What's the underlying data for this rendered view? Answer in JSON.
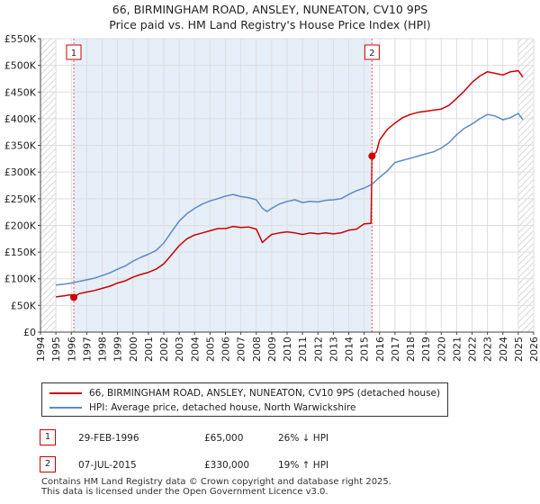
{
  "title": "66, BIRMINGHAM ROAD, ANSLEY, NUNEATON, CV10 9PS",
  "subtitle": "Price paid vs. HM Land Registry's House Price Index (HPI)",
  "colors": {
    "property": "#cc0000",
    "hpi": "#5b8ac8",
    "shade": "#e6eef8",
    "hatch": "#cccccc",
    "marker_line": "#e06060",
    "grid": "#dddddd"
  },
  "legend": {
    "property_label": "66, BIRMINGHAM ROAD, ANSLEY, NUNEATON, CV10 9PS (detached house)",
    "hpi_label": "HPI: Average price, detached house, North Warwickshire"
  },
  "transactions": [
    {
      "num": "1",
      "date": "29-FEB-1996",
      "price": "£65,000",
      "hpi_rel": "26% ↓ HPI"
    },
    {
      "num": "2",
      "date": "07-JUL-2015",
      "price": "£330,000",
      "hpi_rel": "19% ↑ HPI"
    }
  ],
  "footer": {
    "line1": "Contains HM Land Registry data © Crown copyright and database right 2025.",
    "line2": "This data is licensed under the Open Government Licence v3.0."
  },
  "chart_data": {
    "type": "line",
    "title": "66, BIRMINGHAM ROAD, ANSLEY, NUNEATON, CV10 9PS",
    "subtitle": "Price paid vs. HM Land Registry's House Price Index (HPI)",
    "xlim": [
      1994,
      2026
    ],
    "ylim": [
      0,
      550000
    ],
    "x_ticks": [
      1994,
      1995,
      1996,
      1997,
      1998,
      1999,
      2000,
      2001,
      2002,
      2003,
      2004,
      2005,
      2006,
      2007,
      2008,
      2009,
      2010,
      2011,
      2012,
      2013,
      2014,
      2015,
      2016,
      2017,
      2018,
      2019,
      2020,
      2021,
      2022,
      2023,
      2024,
      2025,
      2026
    ],
    "y_ticks": [
      0,
      50000,
      100000,
      150000,
      200000,
      250000,
      300000,
      350000,
      400000,
      450000,
      500000,
      550000
    ],
    "y_tick_labels": [
      "£0",
      "£50K",
      "£100K",
      "£150K",
      "£200K",
      "£250K",
      "£300K",
      "£350K",
      "£400K",
      "£450K",
      "£500K",
      "£550K"
    ],
    "shaded_range": [
      1996.16,
      2015.51
    ],
    "hatched_ranges": [
      [
        1994,
        1995.0
      ],
      [
        2025.0,
        2026
      ]
    ],
    "sale_markers": [
      {
        "label": "1",
        "x": 1996.16,
        "y": 65000
      },
      {
        "label": "2",
        "x": 2015.51,
        "y": 330000
      }
    ],
    "series": [
      {
        "name": "66, BIRMINGHAM ROAD, ANSLEY, NUNEATON, CV10 9PS (detached house)",
        "color": "#cc0000",
        "x": [
          1995.0,
          1995.5,
          1996.0,
          1996.16,
          1996.5,
          1997.0,
          1997.5,
          1998.0,
          1998.5,
          1999.0,
          1999.5,
          2000.0,
          2000.5,
          2001.0,
          2001.5,
          2002.0,
          2002.5,
          2003.0,
          2003.5,
          2004.0,
          2004.5,
          2005.0,
          2005.5,
          2006.0,
          2006.5,
          2007.0,
          2007.5,
          2008.0,
          2008.4,
          2008.7,
          2009.0,
          2009.5,
          2010.0,
          2010.5,
          2011.0,
          2011.5,
          2012.0,
          2012.5,
          2013.0,
          2013.5,
          2014.0,
          2014.5,
          2015.0,
          2015.45,
          2015.51,
          2015.8,
          2016.0,
          2016.5,
          2017.0,
          2017.5,
          2018.0,
          2018.5,
          2019.0,
          2019.5,
          2020.0,
          2020.5,
          2021.0,
          2021.5,
          2022.0,
          2022.5,
          2023.0,
          2023.5,
          2024.0,
          2024.5,
          2025.0,
          2025.3
        ],
        "y": [
          66000,
          68000,
          70000,
          65000,
          72000,
          75000,
          78000,
          82000,
          86000,
          92000,
          96000,
          103000,
          108000,
          112000,
          118000,
          128000,
          145000,
          162000,
          175000,
          182000,
          186000,
          190000,
          194000,
          194000,
          198000,
          196000,
          197000,
          193000,
          168000,
          176000,
          183000,
          186000,
          188000,
          186000,
          183000,
          186000,
          184000,
          186000,
          184000,
          186000,
          191000,
          193000,
          203000,
          204000,
          330000,
          338000,
          360000,
          380000,
          392000,
          402000,
          408000,
          412000,
          414000,
          416000,
          418000,
          425000,
          438000,
          452000,
          468000,
          480000,
          488000,
          485000,
          482000,
          488000,
          490000,
          478000
        ]
      },
      {
        "name": "HPI: Average price, detached house, North Warwickshire",
        "color": "#5b8ac8",
        "x": [
          1995.0,
          1995.5,
          1996.0,
          1996.5,
          1997.0,
          1997.5,
          1998.0,
          1998.5,
          1999.0,
          1999.5,
          2000.0,
          2000.5,
          2001.0,
          2001.5,
          2002.0,
          2002.5,
          2003.0,
          2003.5,
          2004.0,
          2004.5,
          2005.0,
          2005.5,
          2006.0,
          2006.5,
          2007.0,
          2007.5,
          2008.0,
          2008.4,
          2008.7,
          2009.0,
          2009.5,
          2010.0,
          2010.5,
          2011.0,
          2011.5,
          2012.0,
          2012.5,
          2013.0,
          2013.5,
          2014.0,
          2014.5,
          2015.0,
          2015.5,
          2016.0,
          2016.5,
          2017.0,
          2017.5,
          2018.0,
          2018.5,
          2019.0,
          2019.5,
          2020.0,
          2020.5,
          2021.0,
          2021.5,
          2022.0,
          2022.5,
          2023.0,
          2023.5,
          2024.0,
          2024.5,
          2025.0,
          2025.3
        ],
        "y": [
          88000,
          90000,
          92000,
          95000,
          98000,
          101000,
          106000,
          111000,
          118000,
          124000,
          133000,
          140000,
          146000,
          153000,
          167000,
          188000,
          208000,
          222000,
          232000,
          240000,
          246000,
          250000,
          255000,
          258000,
          254000,
          252000,
          248000,
          232000,
          226000,
          232000,
          240000,
          245000,
          248000,
          243000,
          245000,
          244000,
          247000,
          248000,
          250000,
          258000,
          265000,
          270000,
          277000,
          290000,
          302000,
          318000,
          322000,
          326000,
          330000,
          334000,
          338000,
          345000,
          355000,
          370000,
          382000,
          390000,
          400000,
          408000,
          405000,
          398000,
          402000,
          410000,
          398000
        ]
      }
    ]
  }
}
